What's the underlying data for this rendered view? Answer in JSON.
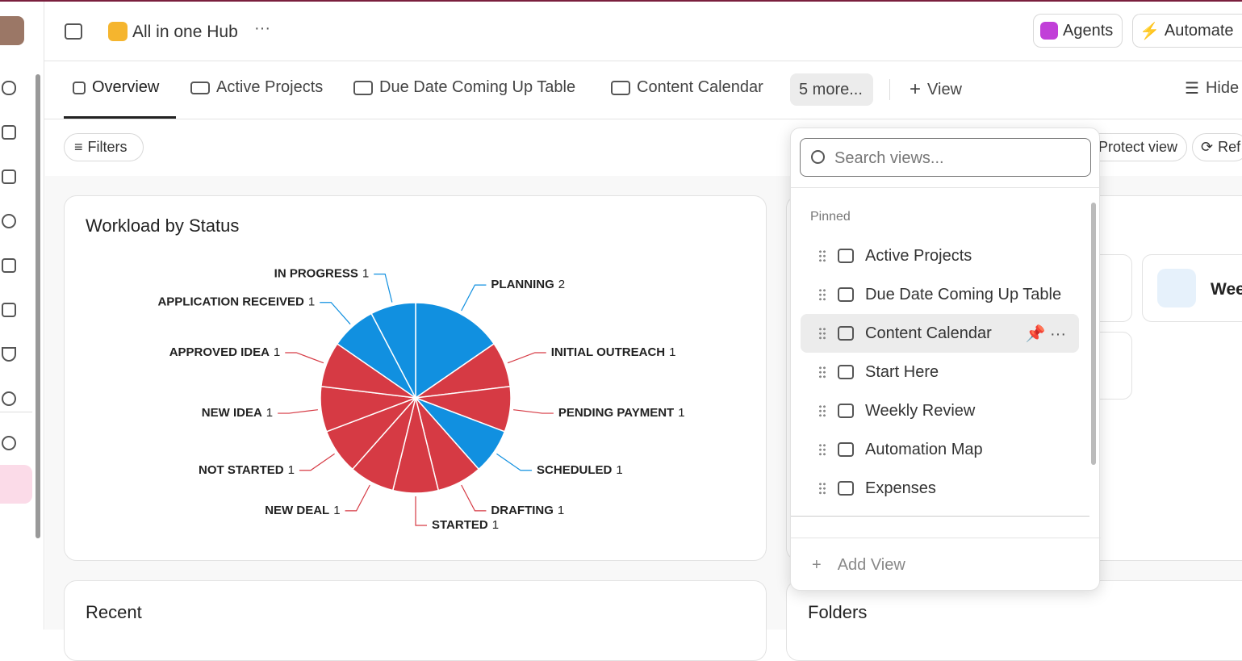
{
  "header": {
    "hub": "All in one Hub",
    "agents": "Agents",
    "automate": "Automate"
  },
  "tabs": [
    "Overview",
    "Active Projects",
    "Due Date Coming Up Table",
    "Content Calendar",
    "5 more...",
    "View",
    "Hide"
  ],
  "toolbar": {
    "filters": "Filters",
    "protect": "Protect view",
    "refresh": "Ref"
  },
  "chart_data": {
    "type": "pie",
    "title": "Workload by Status",
    "categories": [
      "PLANNING",
      "INITIAL OUTREACH",
      "PENDING PAYMENT",
      "SCHEDULED",
      "DRAFTING",
      "STARTED",
      "NEW DEAL",
      "NOT STARTED",
      "NEW IDEA",
      "APPROVED IDEA",
      "APPLICATION RECEIVED",
      "IN PROGRESS"
    ],
    "values": [
      2,
      1,
      1,
      1,
      1,
      1,
      1,
      1,
      1,
      1,
      1,
      1
    ],
    "colors": [
      "#1190e0",
      "#d63a44",
      "#d63a44",
      "#1190e0",
      "#d63a44",
      "#d63a44",
      "#d63a44",
      "#d63a44",
      "#d63a44",
      "#d63a44",
      "#1190e0",
      "#1190e0"
    ]
  },
  "cards": {
    "recent": "Recent",
    "folders": "Folders",
    "doc": "Wee"
  },
  "dropdown": {
    "search": "Search views...",
    "section": "Pinned",
    "items": [
      "Active Projects",
      "Due Date Coming Up Table",
      "Content Calendar",
      "Start Here",
      "Weekly Review",
      "Automation Map",
      "Expenses"
    ],
    "add": "Add View"
  }
}
